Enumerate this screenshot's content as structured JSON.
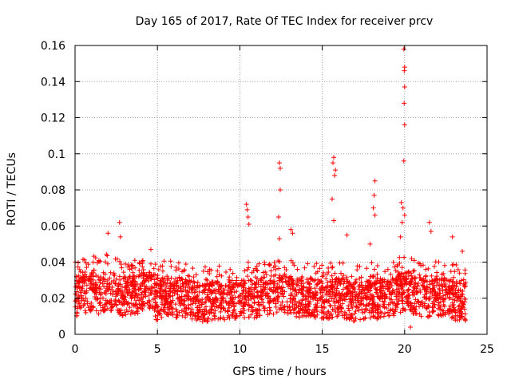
{
  "chart_data": {
    "type": "scatter",
    "title": "Day 165 of 2017, Rate Of TEC Index for receiver prcv",
    "xlabel": "GPS time / hours",
    "ylabel": "ROTI / TECUs",
    "xlim": [
      0,
      25
    ],
    "ylim": [
      0,
      0.16
    ],
    "grid": true,
    "marker": "+",
    "marker_color": "#ff0000",
    "x_ticks": [
      0,
      5,
      10,
      15,
      20,
      25
    ],
    "x_tick_labels": [
      "0",
      "5",
      "10",
      "15",
      "20",
      "25"
    ],
    "y_ticks": [
      0,
      0.02,
      0.04,
      0.06,
      0.08,
      0.1,
      0.12,
      0.14,
      0.16
    ],
    "y_tick_labels": [
      "0",
      "0.02",
      "0.04",
      "0.06",
      "0.08",
      "0.1",
      "0.12",
      "0.14",
      "0.16"
    ],
    "series": [
      {
        "name": "ROTI",
        "baseline_envelope": [
          [
            0.0,
            0.021
          ],
          [
            0.5,
            0.022
          ],
          [
            1.0,
            0.024
          ],
          [
            1.5,
            0.022
          ],
          [
            2.0,
            0.025
          ],
          [
            2.5,
            0.022
          ],
          [
            3.0,
            0.021
          ],
          [
            3.5,
            0.022
          ],
          [
            4.0,
            0.023
          ],
          [
            4.5,
            0.024
          ],
          [
            5.0,
            0.018
          ],
          [
            5.5,
            0.022
          ],
          [
            6.0,
            0.02
          ],
          [
            6.5,
            0.02
          ],
          [
            7.0,
            0.019
          ],
          [
            7.5,
            0.018
          ],
          [
            8.0,
            0.018
          ],
          [
            8.5,
            0.019
          ],
          [
            9.0,
            0.018
          ],
          [
            9.5,
            0.019
          ],
          [
            10.0,
            0.02
          ],
          [
            10.5,
            0.02
          ],
          [
            11.0,
            0.02
          ],
          [
            11.5,
            0.021
          ],
          [
            12.0,
            0.022
          ],
          [
            12.5,
            0.024
          ],
          [
            13.0,
            0.022
          ],
          [
            13.5,
            0.02
          ],
          [
            14.0,
            0.021
          ],
          [
            14.5,
            0.02
          ],
          [
            15.0,
            0.019
          ],
          [
            15.5,
            0.02
          ],
          [
            16.0,
            0.021
          ],
          [
            16.5,
            0.019
          ],
          [
            17.0,
            0.018
          ],
          [
            17.5,
            0.019
          ],
          [
            18.0,
            0.02
          ],
          [
            18.5,
            0.019
          ],
          [
            19.0,
            0.02
          ],
          [
            19.5,
            0.022
          ],
          [
            20.0,
            0.024
          ],
          [
            20.5,
            0.022
          ],
          [
            21.0,
            0.021
          ],
          [
            21.5,
            0.02
          ],
          [
            22.0,
            0.021
          ],
          [
            22.5,
            0.02
          ],
          [
            23.0,
            0.019
          ],
          [
            23.5,
            0.017
          ]
        ],
        "time_span_hours": [
          0.0,
          23.7
        ],
        "notable_points": [
          {
            "x": 2.0,
            "y": 0.056
          },
          {
            "x": 2.7,
            "y": 0.062
          },
          {
            "x": 2.75,
            "y": 0.054
          },
          {
            "x": 4.6,
            "y": 0.047
          },
          {
            "x": 10.4,
            "y": 0.072
          },
          {
            "x": 10.45,
            "y": 0.069
          },
          {
            "x": 10.5,
            "y": 0.065
          },
          {
            "x": 10.55,
            "y": 0.061
          },
          {
            "x": 12.4,
            "y": 0.095
          },
          {
            "x": 12.45,
            "y": 0.092
          },
          {
            "x": 12.45,
            "y": 0.08
          },
          {
            "x": 12.35,
            "y": 0.065
          },
          {
            "x": 12.4,
            "y": 0.053
          },
          {
            "x": 13.1,
            "y": 0.058
          },
          {
            "x": 13.2,
            "y": 0.056
          },
          {
            "x": 15.7,
            "y": 0.098
          },
          {
            "x": 15.65,
            "y": 0.095
          },
          {
            "x": 15.8,
            "y": 0.091
          },
          {
            "x": 15.75,
            "y": 0.088
          },
          {
            "x": 15.6,
            "y": 0.075
          },
          {
            "x": 15.7,
            "y": 0.063
          },
          {
            "x": 16.5,
            "y": 0.055
          },
          {
            "x": 18.2,
            "y": 0.085
          },
          {
            "x": 18.15,
            "y": 0.077
          },
          {
            "x": 18.1,
            "y": 0.07
          },
          {
            "x": 18.2,
            "y": 0.066
          },
          {
            "x": 17.9,
            "y": 0.05
          },
          {
            "x": 19.95,
            "y": 0.158
          },
          {
            "x": 20.0,
            "y": 0.148
          },
          {
            "x": 19.98,
            "y": 0.146
          },
          {
            "x": 20.0,
            "y": 0.137
          },
          {
            "x": 19.97,
            "y": 0.128
          },
          {
            "x": 20.0,
            "y": 0.116
          },
          {
            "x": 19.95,
            "y": 0.096
          },
          {
            "x": 19.8,
            "y": 0.073
          },
          {
            "x": 19.9,
            "y": 0.07
          },
          {
            "x": 20.0,
            "y": 0.066
          },
          {
            "x": 19.85,
            "y": 0.062
          },
          {
            "x": 19.75,
            "y": 0.054
          },
          {
            "x": 21.5,
            "y": 0.062
          },
          {
            "x": 21.6,
            "y": 0.057
          },
          {
            "x": 22.9,
            "y": 0.054
          },
          {
            "x": 23.5,
            "y": 0.046
          },
          {
            "x": 20.35,
            "y": 0.004
          },
          {
            "x": 0.1,
            "y": 0.028
          }
        ]
      }
    ]
  }
}
